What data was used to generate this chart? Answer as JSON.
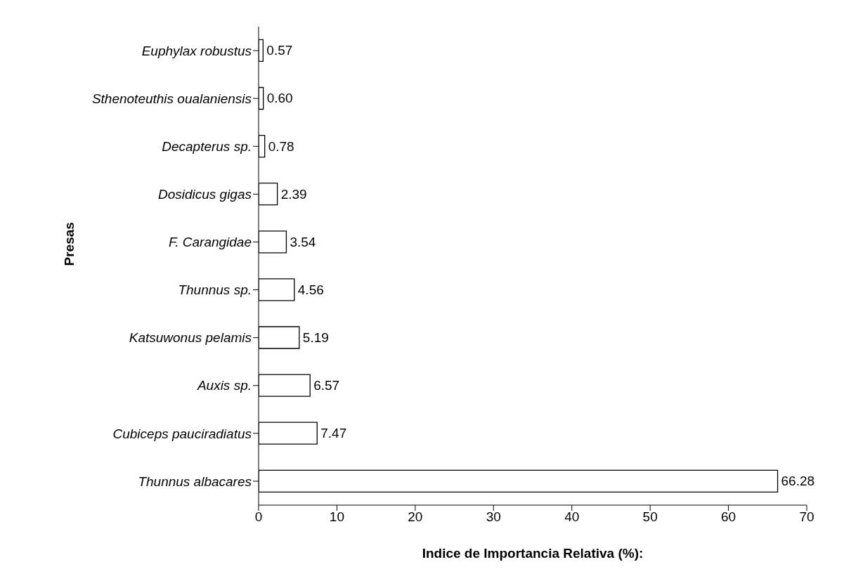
{
  "chart_data": {
    "type": "bar",
    "orientation": "horizontal",
    "xlabel": "Indice de Importancia Relativa (%):",
    "ylabel": "Presas",
    "categories": [
      "Euphylax robustus",
      "Sthenoteuthis oualaniensis",
      "Decapterus sp.",
      "Dosidicus gigas",
      "F. Carangidae",
      "Thunnus sp.",
      "Katsuwonus pelamis",
      "Auxis sp.",
      "Cubiceps pauciradiatus",
      "Thunnus albacares"
    ],
    "values": [
      0.57,
      0.6,
      0.78,
      2.39,
      3.54,
      4.56,
      5.19,
      6.57,
      7.47,
      66.28
    ],
    "value_labels": [
      "0.57",
      "0.60",
      "0.78",
      "2.39",
      "3.54",
      "4.56",
      "5.19",
      "6.57",
      "7.47",
      "66.28"
    ],
    "color": "#ffffff",
    "xlim": [
      0,
      70
    ],
    "xticks": [
      0,
      10,
      20,
      30,
      40,
      50,
      60,
      70
    ],
    "grid": false,
    "legend": false
  }
}
